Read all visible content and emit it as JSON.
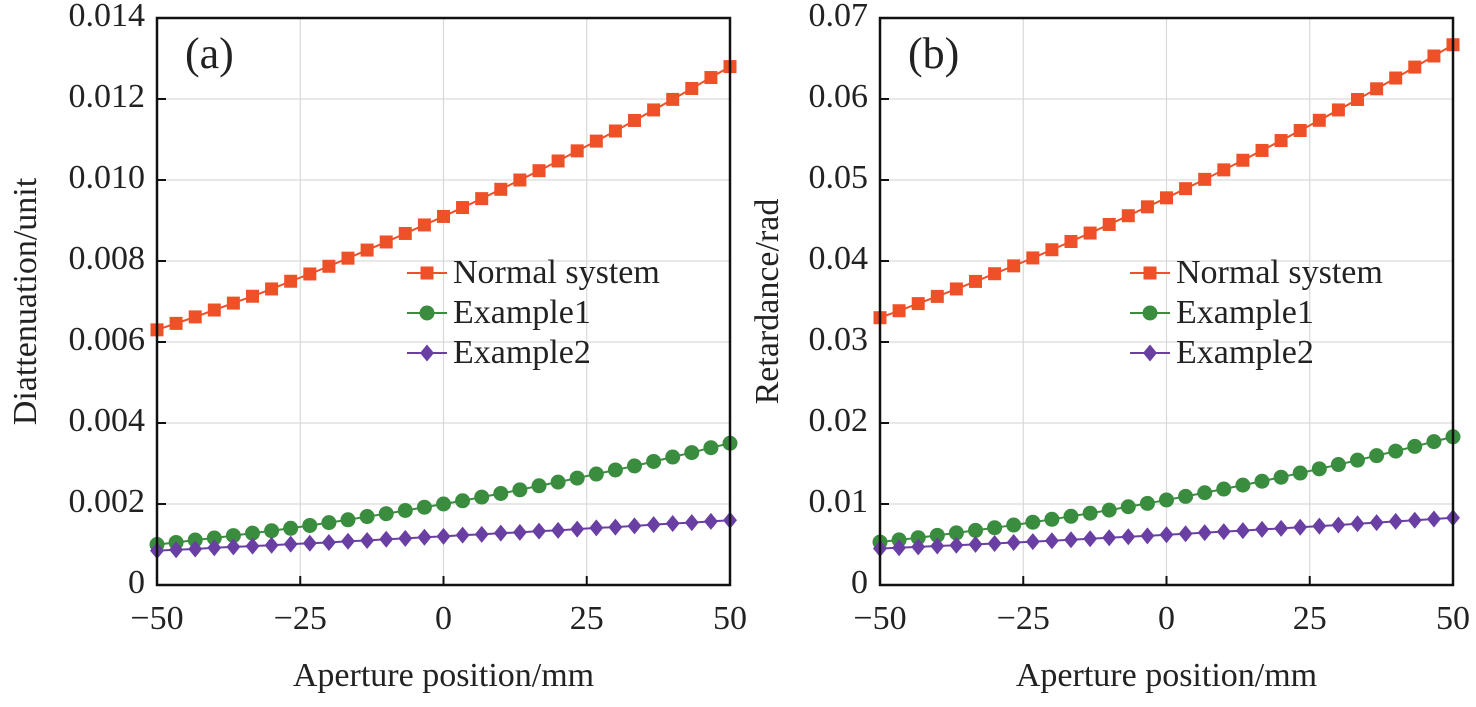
{
  "chart_data": [
    {
      "type": "line",
      "annotation": "(a)",
      "xlabel": "Aperture position/mm",
      "ylabel": "Diattenuation/unit",
      "grid": true,
      "legend": "right",
      "xlim": [
        -50,
        50
      ],
      "xticks": [
        {
          "value": -50,
          "label": "−50"
        },
        {
          "value": -25,
          "label": "−25"
        },
        0,
        25,
        50
      ],
      "ylim": [
        0,
        0.014
      ],
      "yticks": [
        0,
        0.002,
        0.004,
        0.006,
        0.008,
        {
          "value": 0.01,
          "label": "0.010"
        },
        0.012,
        0.014
      ],
      "x": [
        -50,
        -46.67,
        -43.33,
        -40,
        -36.67,
        -33.33,
        -30,
        -26.67,
        -23.33,
        -20,
        -16.67,
        -13.33,
        -10,
        -6.67,
        -3.33,
        0,
        3.33,
        6.67,
        10,
        13.33,
        16.67,
        20,
        23.33,
        26.67,
        30,
        33.33,
        36.67,
        40,
        43.33,
        46.67,
        50
      ],
      "series": [
        {
          "name": "Normal system",
          "color": "#ee5128",
          "marker": "square",
          "values": [
            0.0063,
            0.00646,
            0.00662,
            0.00679,
            0.00696,
            0.00713,
            0.00731,
            0.0075,
            0.00768,
            0.00787,
            0.00807,
            0.00827,
            0.00847,
            0.00868,
            0.00889,
            0.0091,
            0.00932,
            0.00954,
            0.00977,
            0.01,
            0.01023,
            0.01047,
            0.01072,
            0.01096,
            0.01121,
            0.01147,
            0.01173,
            0.01199,
            0.01226,
            0.01253,
            0.0128
          ]
        },
        {
          "name": "Example1",
          "color": "#3a8c3f",
          "marker": "circle",
          "values": [
            0.001,
            0.00105,
            0.00111,
            0.00116,
            0.00122,
            0.00128,
            0.00134,
            0.0014,
            0.00147,
            0.00154,
            0.00161,
            0.00169,
            0.00176,
            0.00184,
            0.00192,
            0.002,
            0.00208,
            0.00217,
            0.00226,
            0.00235,
            0.00245,
            0.00254,
            0.00264,
            0.00274,
            0.00284,
            0.00294,
            0.00305,
            0.00316,
            0.00327,
            0.00339,
            0.0035
          ]
        },
        {
          "name": "Example2",
          "color": "#6a3fa3",
          "marker": "diamond",
          "values": [
            0.00085,
            0.00087,
            0.00089,
            0.00092,
            0.00094,
            0.00096,
            0.00098,
            0.00101,
            0.00103,
            0.00105,
            0.00108,
            0.0011,
            0.00113,
            0.00115,
            0.00118,
            0.0012,
            0.00123,
            0.00125,
            0.00128,
            0.0013,
            0.00133,
            0.00135,
            0.00138,
            0.00141,
            0.00143,
            0.00146,
            0.00149,
            0.00152,
            0.00154,
            0.00157,
            0.0016
          ]
        }
      ]
    },
    {
      "type": "line",
      "annotation": "(b)",
      "xlabel": "Aperture position/mm",
      "ylabel": "Retardance/rad",
      "grid": true,
      "legend": "right",
      "xlim": [
        -50,
        50
      ],
      "xticks": [
        {
          "value": -50,
          "label": "−50"
        },
        {
          "value": -25,
          "label": "−25"
        },
        0,
        25,
        50
      ],
      "ylim": [
        0,
        0.07
      ],
      "yticks": [
        0,
        0.01,
        0.02,
        0.03,
        0.04,
        0.05,
        0.06,
        0.07
      ],
      "x": [
        -50,
        -46.67,
        -43.33,
        -40,
        -36.67,
        -33.33,
        -30,
        -26.67,
        -23.33,
        -20,
        -16.67,
        -13.33,
        -10,
        -6.67,
        -3.33,
        0,
        3.33,
        6.67,
        10,
        13.33,
        16.67,
        20,
        23.33,
        26.67,
        30,
        33.33,
        36.67,
        40,
        43.33,
        46.67,
        50
      ],
      "series": [
        {
          "name": "Normal system",
          "color": "#ee5128",
          "marker": "square",
          "values": [
            0.033,
            0.03386,
            0.03474,
            0.03563,
            0.03655,
            0.03748,
            0.03843,
            0.0394,
            0.04038,
            0.04139,
            0.04241,
            0.04345,
            0.04451,
            0.04559,
            0.04669,
            0.0478,
            0.04893,
            0.05008,
            0.05125,
            0.05244,
            0.05365,
            0.05487,
            0.05611,
            0.05737,
            0.05865,
            0.05994,
            0.06126,
            0.06259,
            0.06394,
            0.06531,
            0.0667
          ]
        },
        {
          "name": "Example1",
          "color": "#3a8c3f",
          "marker": "circle",
          "values": [
            0.0053,
            0.00557,
            0.00584,
            0.00613,
            0.00643,
            0.00674,
            0.00707,
            0.0074,
            0.00775,
            0.00811,
            0.00848,
            0.00886,
            0.00925,
            0.00966,
            0.01007,
            0.0105,
            0.01094,
            0.01139,
            0.01185,
            0.01233,
            0.01281,
            0.01331,
            0.01382,
            0.01434,
            0.01487,
            0.01541,
            0.01597,
            0.01653,
            0.01711,
            0.0177,
            0.0183
          ]
        },
        {
          "name": "Example2",
          "color": "#6a3fa3",
          "marker": "diamond",
          "values": [
            0.0045,
            0.0046,
            0.0047,
            0.00481,
            0.00491,
            0.00502,
            0.00513,
            0.00524,
            0.00536,
            0.00547,
            0.00559,
            0.00571,
            0.00583,
            0.00595,
            0.00607,
            0.0062,
            0.00633,
            0.00646,
            0.00659,
            0.00672,
            0.00686,
            0.00699,
            0.00713,
            0.00727,
            0.00741,
            0.00756,
            0.0077,
            0.00785,
            0.008,
            0.00815,
            0.0083
          ]
        }
      ]
    }
  ]
}
